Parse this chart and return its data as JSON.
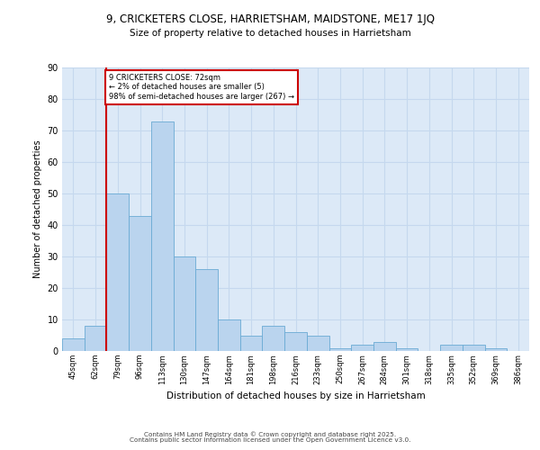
{
  "title1": "9, CRICKETERS CLOSE, HARRIETSHAM, MAIDSTONE, ME17 1JQ",
  "title2": "Size of property relative to detached houses in Harrietsham",
  "xlabel": "Distribution of detached houses by size in Harrietsham",
  "ylabel": "Number of detached properties",
  "categories": [
    "45sqm",
    "62sqm",
    "79sqm",
    "96sqm",
    "113sqm",
    "130sqm",
    "147sqm",
    "164sqm",
    "181sqm",
    "198sqm",
    "216sqm",
    "233sqm",
    "250sqm",
    "267sqm",
    "284sqm",
    "301sqm",
    "318sqm",
    "335sqm",
    "352sqm",
    "369sqm",
    "386sqm"
  ],
  "values": [
    4,
    8,
    50,
    43,
    73,
    30,
    26,
    10,
    5,
    8,
    6,
    5,
    1,
    2,
    3,
    1,
    0,
    2,
    2,
    1,
    0
  ],
  "bar_color": "#bad4ee",
  "bar_edge_color": "#6aaad4",
  "grid_color": "#c5d8ee",
  "bg_color": "#dce9f7",
  "vline_x": 1.5,
  "vline_color": "#cc0000",
  "annotation_text": "9 CRICKETERS CLOSE: 72sqm\n← 2% of detached houses are smaller (5)\n98% of semi-detached houses are larger (267) →",
  "annotation_box_color": "#cc0000",
  "footer": "Contains HM Land Registry data © Crown copyright and database right 2025.\nContains public sector information licensed under the Open Government Licence v3.0.",
  "ylim": [
    0,
    90
  ],
  "yticks": [
    0,
    10,
    20,
    30,
    40,
    50,
    60,
    70,
    80,
    90
  ]
}
